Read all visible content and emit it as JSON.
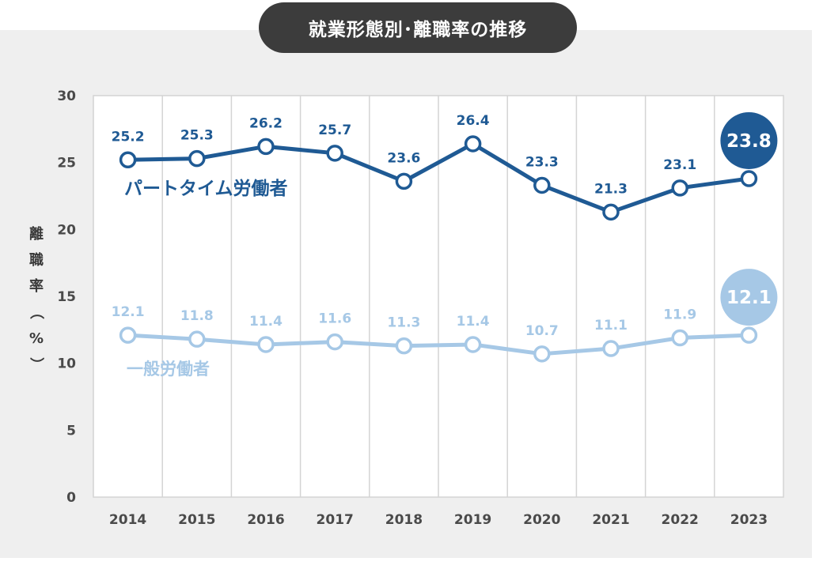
{
  "title": "就業形態別･離職率の推移",
  "colors": {
    "part_time": "#1f5a94",
    "general": "#a6c8e6",
    "panel_bg": "#efefef",
    "title_bg": "#3c3c3c",
    "grid": "#d4d4d4"
  },
  "chart_data": {
    "type": "line",
    "title": "就業形態別･離職率の推移",
    "ylabel": "離職率（%）",
    "ylabel_chars": [
      "離",
      "職",
      "率",
      "（",
      "%",
      "）"
    ],
    "xlabel": "",
    "ylim": [
      0,
      30
    ],
    "yticks": [
      0,
      5,
      10,
      15,
      20,
      25,
      30
    ],
    "grid": true,
    "x": [
      "2014",
      "2015",
      "2016",
      "2017",
      "2018",
      "2019",
      "2020",
      "2021",
      "2022",
      "2023"
    ],
    "series": [
      {
        "name": "パートタイム労働者",
        "values": [
          25.2,
          25.3,
          26.2,
          25.7,
          23.6,
          26.4,
          23.3,
          21.3,
          23.1,
          23.8
        ],
        "labels": [
          "25.2",
          "25.3",
          "26.2",
          "25.7",
          "23.6",
          "26.4",
          "23.3",
          "21.3",
          "23.1",
          "23.8"
        ],
        "color": "#1f5a94",
        "highlight_last": true
      },
      {
        "name": "一般労働者",
        "values": [
          12.1,
          11.8,
          11.4,
          11.6,
          11.3,
          11.4,
          10.7,
          11.1,
          11.9,
          12.1
        ],
        "labels": [
          "12.1",
          "11.8",
          "11.4",
          "11.6",
          "11.3",
          "11.4",
          "10.7",
          "11.1",
          "11.9",
          "12.1"
        ],
        "color": "#a6c8e6",
        "highlight_last": true
      }
    ]
  }
}
